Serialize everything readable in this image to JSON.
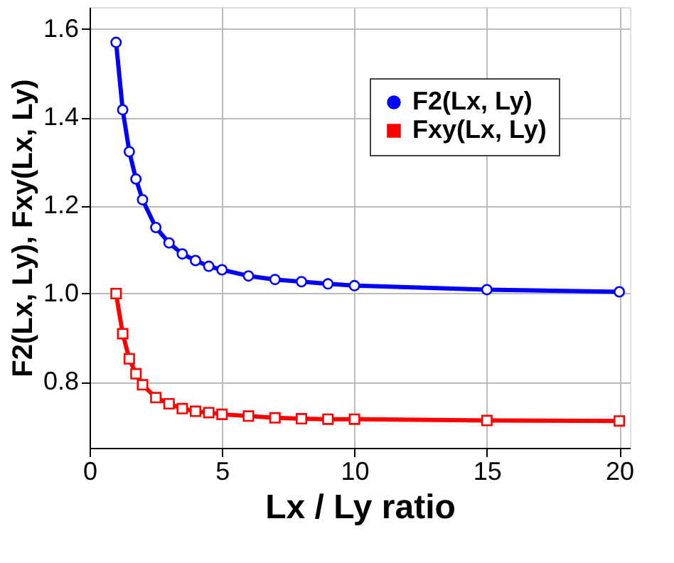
{
  "chart_data": {
    "type": "line",
    "xlabel": "Lx / Ly ratio",
    "ylabel": "F2(Lx, Ly), Fxy(Lx, Ly)",
    "x": [
      1,
      1.25,
      1.5,
      1.75,
      2,
      2.5,
      3,
      3.5,
      4,
      4.5,
      5,
      6,
      7,
      8,
      9,
      10,
      15,
      20
    ],
    "series": [
      {
        "name": "F2(Lx, Ly)",
        "color": "#0000ff",
        "marker": "circle",
        "values": [
          1.57,
          1.417,
          1.322,
          1.26,
          1.213,
          1.15,
          1.115,
          1.09,
          1.075,
          1.062,
          1.054,
          1.04,
          1.032,
          1.027,
          1.022,
          1.018,
          1.009,
          1.004
        ]
      },
      {
        "name": "Fxy(Lx, Ly)",
        "color": "#ff0000",
        "marker": "square",
        "values": [
          1.0,
          0.909,
          0.852,
          0.818,
          0.793,
          0.764,
          0.75,
          0.739,
          0.733,
          0.73,
          0.726,
          0.722,
          0.718,
          0.716,
          0.715,
          0.715,
          0.712,
          0.711
        ]
      }
    ],
    "xlim": [
      0,
      20.4
    ],
    "ylim": [
      0.65,
      1.65
    ],
    "xticks": [
      0,
      5,
      10,
      15,
      20
    ],
    "yticks": [
      {
        "value": 0.8,
        "label": "0.8"
      },
      {
        "value": 1.0,
        "label": "1.0"
      },
      {
        "value": 1.2,
        "label": "1.2"
      },
      {
        "value": 1.4,
        "label": "1.4"
      },
      {
        "value": 1.6,
        "label": "1.6"
      }
    ],
    "grid": true,
    "legend": "top right",
    "line_style": "solid"
  }
}
